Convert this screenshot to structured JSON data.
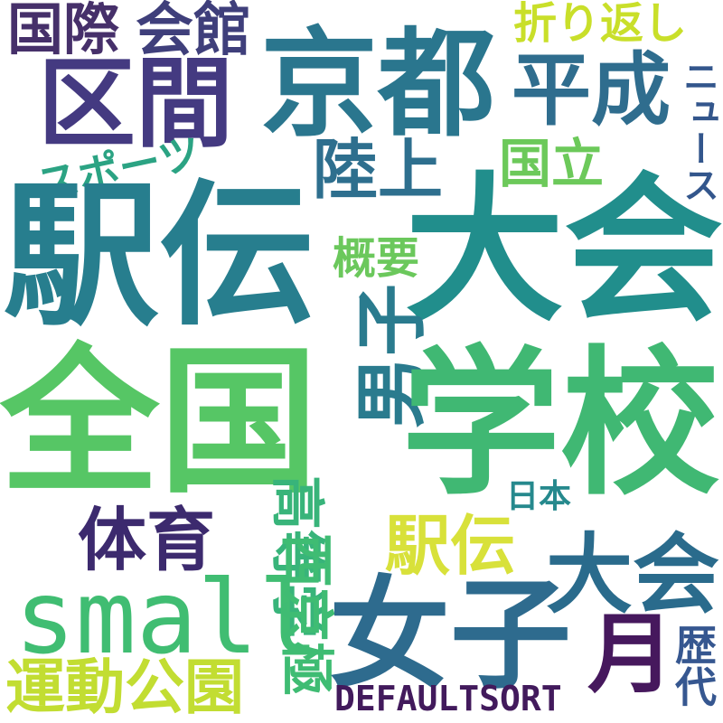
{
  "words": [
    {
      "id": "kokusai",
      "text": "国際",
      "color": "#46306a"
    },
    {
      "id": "kaikan",
      "text": "会館",
      "color": "#3f3f7b"
    },
    {
      "id": "orikaeshi",
      "text": "折り返し",
      "color": "#c9df2a"
    },
    {
      "id": "kukan",
      "text": "区間",
      "color": "#443a81"
    },
    {
      "id": "kyoto",
      "text": "京都",
      "color": "#2a768e"
    },
    {
      "id": "heisei",
      "text": "平成",
      "color": "#2f6d8e"
    },
    {
      "id": "news",
      "text": "ニュース",
      "color": "#33568c"
    },
    {
      "id": "sports",
      "text": "スポーツ",
      "color": "#2ba383"
    },
    {
      "id": "rikujo",
      "text": "陸上",
      "color": "#2e6f8e"
    },
    {
      "id": "kokuritsu",
      "text": "国立",
      "color": "#6cc95a"
    },
    {
      "id": "ekiden-big",
      "text": "駅伝",
      "color": "#277e8e"
    },
    {
      "id": "taikai-big",
      "text": "大会",
      "color": "#218e8c"
    },
    {
      "id": "gaiyo",
      "text": "概要",
      "color": "#6bc85c"
    },
    {
      "id": "danshi",
      "text": "男子",
      "color": "#2a7b8e"
    },
    {
      "id": "zenkoku",
      "text": "全国",
      "color": "#56c665"
    },
    {
      "id": "gakko",
      "text": "学校",
      "color": "#40b873"
    },
    {
      "id": "nihon",
      "text": "日本",
      "color": "#26898d"
    },
    {
      "id": "taiiku",
      "text": "体育",
      "color": "#3c2a6e"
    },
    {
      "id": "kotokaku",
      "text": "高等学",
      "color": "#38b47a"
    },
    {
      "id": "ekiden-small",
      "text": "駅伝",
      "color": "#d8e13a"
    },
    {
      "id": "taikai-small",
      "text": "大会",
      "color": "#2a6b8c"
    },
    {
      "id": "small",
      "text": "small",
      "color": "#40bd72"
    },
    {
      "id": "saikyo",
      "text": "西京極",
      "color": "#3fbc73"
    },
    {
      "id": "joshi",
      "text": "女子",
      "color": "#2e6b8e"
    },
    {
      "id": "tsuki",
      "text": "月",
      "color": "#46185d"
    },
    {
      "id": "rekidai",
      "text": "歴代",
      "color": "#365790"
    },
    {
      "id": "undokoen",
      "text": "運動公園",
      "color": "#c2dd32"
    },
    {
      "id": "defaultsort",
      "text": "DEFAULTSORT",
      "color": "#421a5c"
    }
  ]
}
